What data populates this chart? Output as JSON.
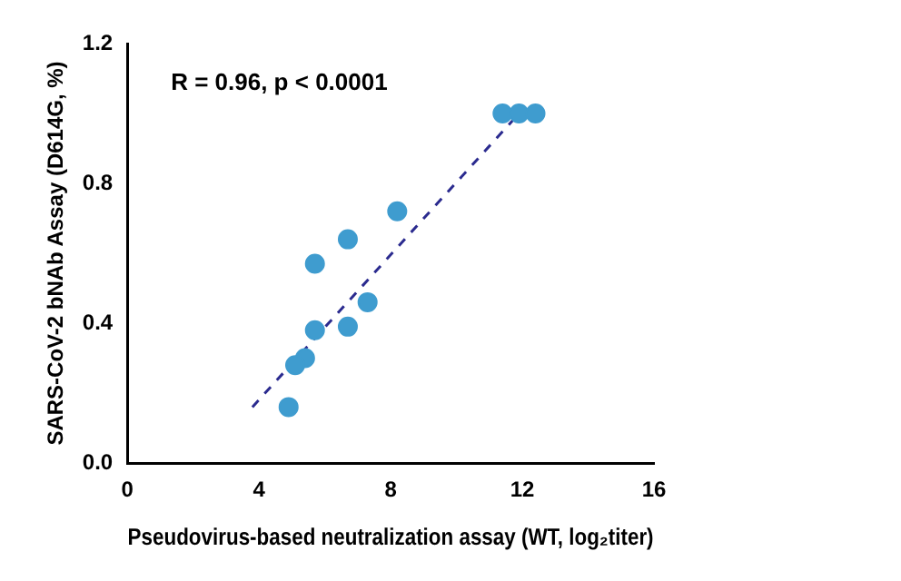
{
  "chart_data": {
    "type": "scatter",
    "xlabel": "Pseudovirus-based neutralization assay (WT, log₂titer)",
    "ylabel": "SARS-CoV-2 bNAb Assay (D614G, %)",
    "annotations": [
      "R = 0.96, p < 0.0001"
    ],
    "xlim": [
      0,
      16
    ],
    "xticks": [
      0,
      4,
      8,
      12,
      16
    ],
    "ylim": [
      0,
      1.2
    ],
    "yticks": [
      {
        "value": 0,
        "label": "0.0"
      },
      0.4,
      0.8,
      1.2
    ],
    "grid": false,
    "legend": false,
    "series": [
      {
        "color": "#3f9ccf",
        "marker": "circle",
        "x": [
          11.4,
          11.9,
          12.4,
          8.2,
          6.7,
          5.7,
          7.3,
          6.7,
          5.7,
          5.4,
          5.1,
          4.9
        ],
        "values": [
          1.0,
          1.0,
          1.0,
          0.72,
          0.64,
          0.57,
          0.46,
          0.39,
          0.38,
          0.3,
          0.28,
          0.16
        ]
      },
      {
        "type": "line",
        "color": "#2b2b8f",
        "line_style": "dashed",
        "marker": "none",
        "x": [
          3.8,
          11.9
        ],
        "values": [
          0.16,
          1.0
        ]
      }
    ]
  }
}
